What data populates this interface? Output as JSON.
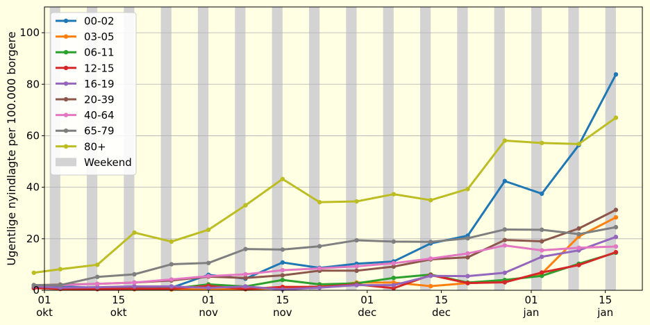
{
  "chart_data": {
    "type": "line",
    "ylabel": "Ugentlige nyindlagte per 100.000 borgere",
    "xlabel": "",
    "ylim": [
      0,
      110
    ],
    "xlim": [
      "2021-10-01",
      "2022-01-22"
    ],
    "yticks": [
      0,
      20,
      40,
      60,
      80,
      100
    ],
    "xticks": [
      {
        "date": "2021-10-01",
        "label": "01\nokt"
      },
      {
        "date": "2021-10-15",
        "label": "15\nokt"
      },
      {
        "date": "2021-11-01",
        "label": "01\nnov"
      },
      {
        "date": "2021-11-15",
        "label": "15\nnov"
      },
      {
        "date": "2021-12-01",
        "label": "01\ndec"
      },
      {
        "date": "2021-12-15",
        "label": "15\ndec"
      },
      {
        "date": "2022-01-01",
        "label": "01\njan"
      },
      {
        "date": "2022-01-15",
        "label": "15\njan"
      }
    ],
    "grid": "horizontal",
    "legend_position": "top-left",
    "weekend": {
      "label": "Weekend",
      "color": "#d3d3d3"
    },
    "x": [
      "2021-09-29",
      "2021-10-04",
      "2021-10-11",
      "2021-10-18",
      "2021-10-25",
      "2021-11-01",
      "2021-11-08",
      "2021-11-15",
      "2021-11-22",
      "2021-11-29",
      "2021-12-06",
      "2021-12-13",
      "2021-12-20",
      "2021-12-27",
      "2022-01-03",
      "2022-01-10",
      "2022-01-17"
    ],
    "series": [
      {
        "name": "00-02",
        "color": "#1f77b4",
        "values": [
          2.0,
          1.5,
          1.0,
          1.2,
          1.0,
          6.0,
          4.5,
          10.8,
          8.7,
          10.3,
          11.2,
          18.2,
          21.2,
          42.4,
          37.5,
          56.4,
          83.8
        ]
      },
      {
        "name": "03-05",
        "color": "#ff7f0e",
        "values": [
          1.0,
          0.5,
          0.4,
          0.4,
          0.3,
          0.6,
          0.4,
          0.8,
          1.4,
          3.0,
          3.0,
          1.6,
          2.8,
          3.3,
          6.5,
          20.9,
          28.3
        ]
      },
      {
        "name": "06-11",
        "color": "#2ca02c",
        "values": [
          1.2,
          1.0,
          0.6,
          0.6,
          0.6,
          2.3,
          1.5,
          4.0,
          2.3,
          2.7,
          4.8,
          6.1,
          3.0,
          4.0,
          5.6,
          10.3,
          14.6
        ]
      },
      {
        "name": "12-15",
        "color": "#d62728",
        "values": [
          0.8,
          0.6,
          0.5,
          0.6,
          0.6,
          1.7,
          0.5,
          1.3,
          1.3,
          2.3,
          0.8,
          5.9,
          2.8,
          3.1,
          6.9,
          9.8,
          14.8
        ]
      },
      {
        "name": "16-19",
        "color": "#9467bd",
        "values": [
          1.5,
          1.0,
          1.2,
          1.5,
          1.5,
          0.9,
          1.5,
          0.3,
          1.0,
          2.0,
          2.0,
          5.6,
          5.5,
          6.8,
          13.0,
          15.5,
          20.7
        ]
      },
      {
        "name": "20-39",
        "color": "#8c564b",
        "values": [
          2.0,
          2.2,
          2.5,
          3.0,
          3.8,
          5.3,
          4.8,
          5.8,
          7.6,
          7.6,
          9.2,
          12.0,
          12.8,
          19.5,
          19.0,
          24.0,
          31.2
        ]
      },
      {
        "name": "40-64",
        "color": "#e377c2",
        "values": [
          2.0,
          2.0,
          2.5,
          3.0,
          4.2,
          5.5,
          6.2,
          7.8,
          8.5,
          9.3,
          10.5,
          12.3,
          14.3,
          17.4,
          15.5,
          16.5,
          17.0
        ]
      },
      {
        "name": "65-79",
        "color": "#7f7f7f",
        "values": [
          2.0,
          2.0,
          5.2,
          6.2,
          10.1,
          10.6,
          16.0,
          15.8,
          17.1,
          19.4,
          18.9,
          18.8,
          20.2,
          23.6,
          23.5,
          21.8,
          24.5
        ]
      },
      {
        "name": "80+",
        "color": "#bcbd22",
        "values": [
          6.8,
          8.2,
          9.9,
          22.4,
          18.9,
          23.5,
          33.0,
          43.2,
          34.2,
          34.5,
          37.3,
          35.0,
          39.3,
          58.1,
          57.2,
          56.8,
          67.0
        ]
      }
    ]
  }
}
